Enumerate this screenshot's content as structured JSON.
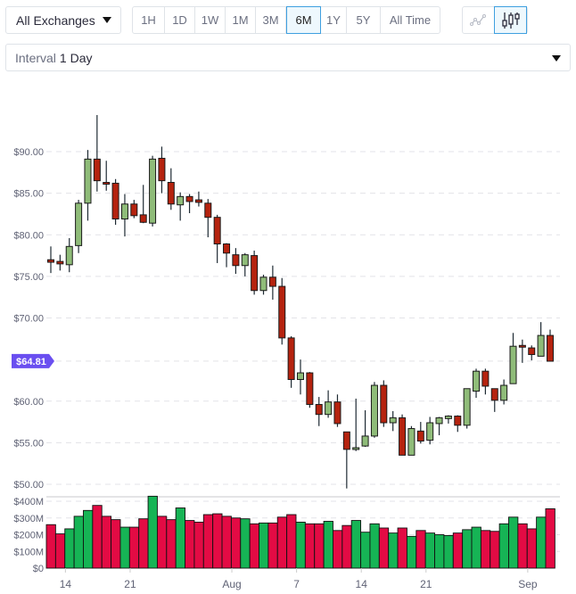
{
  "toolbar": {
    "exchange_label": "All Exchanges",
    "ranges": [
      "1H",
      "1D",
      "1W",
      "1M",
      "3M",
      "6M",
      "1Y",
      "5Y",
      "All Time"
    ],
    "active_range": "6M",
    "chart_types": [
      "line-chart-icon",
      "candlestick-chart-icon"
    ],
    "active_chart_type": "candlestick-chart-icon",
    "interval_prefix": "Interval",
    "interval_value": "1 Day"
  },
  "colors": {
    "up_candle": "#8fbc79",
    "down_candle": "#b5230f",
    "up_volume": "#16b455",
    "down_volume": "#e30b44",
    "price_badge": "#6a4ff0",
    "active_border": "#3fa0e0"
  },
  "current_price_label": "$64.81",
  "chart_data": {
    "type": "candlestick",
    "title": "",
    "price_axis": {
      "ticks": [
        "$90.00",
        "$85.00",
        "$80.00",
        "$75.00",
        "$70.00",
        "$60.00",
        "$55.00",
        "$50.00"
      ],
      "ylim": [
        49.5,
        94
      ]
    },
    "volume_axis": {
      "ticks": [
        "$400M",
        "$300M",
        "$200M",
        "$100M",
        "$0"
      ],
      "ylim": [
        0,
        430
      ]
    },
    "x_ticks": [
      {
        "label": "14",
        "index": 1
      },
      {
        "label": "21",
        "index": 8
      },
      {
        "label": "Aug",
        "index": 19
      },
      {
        "label": "7",
        "index": 26
      },
      {
        "label": "14",
        "index": 33
      },
      {
        "label": "21",
        "index": 40
      },
      {
        "label": "Sep",
        "index": 51
      }
    ],
    "current_price": 64.81,
    "candles": [
      {
        "o": 77.0,
        "h": 78.6,
        "l": 75.4,
        "c": 76.7
      },
      {
        "o": 76.8,
        "h": 77.6,
        "l": 75.7,
        "c": 76.5
      },
      {
        "o": 76.4,
        "h": 79.6,
        "l": 75.5,
        "c": 78.6
      },
      {
        "o": 78.7,
        "h": 84.2,
        "l": 77.8,
        "c": 83.8
      },
      {
        "o": 83.8,
        "h": 90.2,
        "l": 81.7,
        "c": 89.1
      },
      {
        "o": 89.1,
        "h": 94.4,
        "l": 85.2,
        "c": 86.5
      },
      {
        "o": 86.3,
        "h": 88.9,
        "l": 85.3,
        "c": 86.1
      },
      {
        "o": 86.2,
        "h": 86.7,
        "l": 81.2,
        "c": 81.9
      },
      {
        "o": 81.9,
        "h": 84.9,
        "l": 79.8,
        "c": 83.7
      },
      {
        "o": 83.7,
        "h": 84.2,
        "l": 82.0,
        "c": 82.3
      },
      {
        "o": 82.4,
        "h": 86.0,
        "l": 81.4,
        "c": 81.5
      },
      {
        "o": 81.4,
        "h": 89.5,
        "l": 81.0,
        "c": 89.1
      },
      {
        "o": 89.2,
        "h": 90.6,
        "l": 85.0,
        "c": 86.5
      },
      {
        "o": 86.3,
        "h": 88.0,
        "l": 83.0,
        "c": 83.7
      },
      {
        "o": 83.6,
        "h": 85.1,
        "l": 81.7,
        "c": 84.6
      },
      {
        "o": 84.6,
        "h": 84.9,
        "l": 82.6,
        "c": 84.0
      },
      {
        "o": 84.2,
        "h": 85.2,
        "l": 83.4,
        "c": 83.9
      },
      {
        "o": 83.8,
        "h": 84.3,
        "l": 79.7,
        "c": 82.1
      },
      {
        "o": 82.1,
        "h": 82.4,
        "l": 76.6,
        "c": 78.9
      },
      {
        "o": 78.9,
        "h": 79.0,
        "l": 76.1,
        "c": 77.8
      },
      {
        "o": 77.6,
        "h": 78.4,
        "l": 75.3,
        "c": 76.3
      },
      {
        "o": 76.3,
        "h": 77.8,
        "l": 75.0,
        "c": 77.6
      },
      {
        "o": 77.5,
        "h": 78.1,
        "l": 72.8,
        "c": 73.3
      },
      {
        "o": 73.3,
        "h": 75.2,
        "l": 72.8,
        "c": 74.9
      },
      {
        "o": 74.9,
        "h": 76.3,
        "l": 72.2,
        "c": 73.8
      },
      {
        "o": 73.8,
        "h": 74.8,
        "l": 66.8,
        "c": 67.6
      },
      {
        "o": 67.6,
        "h": 67.8,
        "l": 61.6,
        "c": 62.6
      },
      {
        "o": 62.6,
        "h": 65.0,
        "l": 60.8,
        "c": 63.4
      },
      {
        "o": 63.4,
        "h": 63.5,
        "l": 59.2,
        "c": 59.6
      },
      {
        "o": 59.6,
        "h": 60.5,
        "l": 57.0,
        "c": 58.4
      },
      {
        "o": 58.4,
        "h": 61.3,
        "l": 58.0,
        "c": 59.9
      },
      {
        "o": 59.9,
        "h": 60.8,
        "l": 56.9,
        "c": 57.3
      },
      {
        "o": 56.3,
        "h": 56.3,
        "l": 49.5,
        "c": 54.2
      },
      {
        "o": 54.2,
        "h": 60.3,
        "l": 54.0,
        "c": 54.4
      },
      {
        "o": 54.6,
        "h": 58.9,
        "l": 54.5,
        "c": 55.8
      },
      {
        "o": 55.8,
        "h": 62.3,
        "l": 55.6,
        "c": 61.9
      },
      {
        "o": 61.9,
        "h": 62.5,
        "l": 56.9,
        "c": 57.4
      },
      {
        "o": 57.4,
        "h": 58.8,
        "l": 56.4,
        "c": 58.0
      },
      {
        "o": 58.0,
        "h": 58.4,
        "l": 53.5,
        "c": 53.5
      },
      {
        "o": 53.5,
        "h": 57.0,
        "l": 53.5,
        "c": 56.7
      },
      {
        "o": 56.4,
        "h": 57.5,
        "l": 54.9,
        "c": 55.2
      },
      {
        "o": 55.3,
        "h": 58.1,
        "l": 54.8,
        "c": 57.4
      },
      {
        "o": 57.3,
        "h": 58.1,
        "l": 55.9,
        "c": 58.0
      },
      {
        "o": 57.9,
        "h": 58.3,
        "l": 57.3,
        "c": 58.2
      },
      {
        "o": 58.2,
        "h": 58.3,
        "l": 56.3,
        "c": 57.1
      },
      {
        "o": 57.1,
        "h": 61.4,
        "l": 56.7,
        "c": 61.5
      },
      {
        "o": 61.2,
        "h": 63.9,
        "l": 60.4,
        "c": 63.6
      },
      {
        "o": 63.6,
        "h": 63.9,
        "l": 60.8,
        "c": 61.8
      },
      {
        "o": 61.5,
        "h": 61.5,
        "l": 58.7,
        "c": 60.1
      },
      {
        "o": 60.1,
        "h": 62.6,
        "l": 59.6,
        "c": 61.9
      },
      {
        "o": 62.1,
        "h": 68.2,
        "l": 62.1,
        "c": 66.6
      },
      {
        "o": 66.7,
        "h": 67.4,
        "l": 64.6,
        "c": 66.5
      },
      {
        "o": 66.4,
        "h": 66.7,
        "l": 64.9,
        "c": 65.6
      },
      {
        "o": 65.4,
        "h": 69.5,
        "l": 65.4,
        "c": 67.9
      },
      {
        "o": 67.9,
        "h": 68.6,
        "l": 64.8,
        "c": 64.8
      }
    ],
    "volumes": [
      260,
      205,
      235,
      310,
      345,
      375,
      310,
      290,
      245,
      245,
      295,
      430,
      310,
      290,
      360,
      285,
      275,
      320,
      325,
      310,
      300,
      295,
      265,
      270,
      270,
      305,
      320,
      275,
      265,
      265,
      280,
      225,
      255,
      285,
      215,
      265,
      240,
      210,
      240,
      190,
      225,
      210,
      200,
      195,
      210,
      230,
      245,
      225,
      220,
      265,
      305,
      265,
      235,
      305,
      355
    ]
  }
}
